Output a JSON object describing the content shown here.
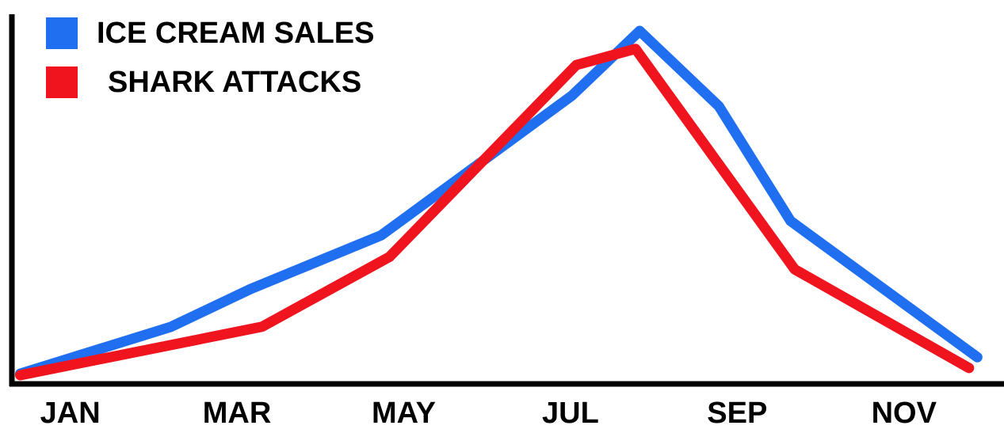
{
  "chart_data": {
    "type": "line",
    "xlim": [
      0.3,
      12.2
    ],
    "ylim": [
      0,
      100
    ],
    "xticks": [
      {
        "value": 1,
        "label": "JAN"
      },
      {
        "value": 3,
        "label": "MAR"
      },
      {
        "value": 5,
        "label": "MAY"
      },
      {
        "value": 7,
        "label": "JUL"
      },
      {
        "value": 9,
        "label": "SEP"
      },
      {
        "value": 11,
        "label": "NOV"
      }
    ],
    "legend": "top-left",
    "series": [
      {
        "name": "ICE CREAM SALES",
        "color": "#1f6ff0",
        "x": [
          0.4,
          2.21,
          3.16,
          4.73,
          7.02,
          7.83,
          8.78,
          9.64,
          11.88
        ],
        "values": [
          2.4,
          15.5,
          26,
          41,
          80,
          98,
          77,
          45,
          7
        ]
      },
      {
        "name": "SHARK ATTACKS",
        "color": "#f0141e",
        "x": [
          0.4,
          3.3,
          4.83,
          7.07,
          7.78,
          9.69,
          11.78
        ],
        "values": [
          2,
          15.5,
          35,
          88.5,
          93,
          31.5,
          4
        ]
      }
    ]
  }
}
